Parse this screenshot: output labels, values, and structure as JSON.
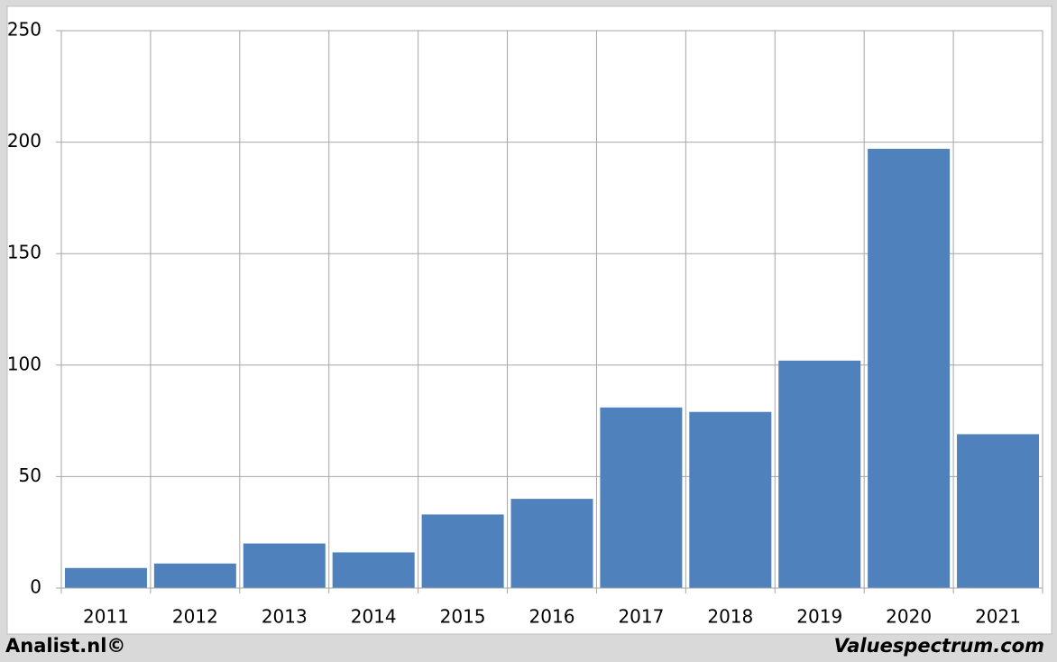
{
  "chart_data": {
    "type": "bar",
    "categories": [
      "2011",
      "2012",
      "2013",
      "2014",
      "2015",
      "2016",
      "2017",
      "2018",
      "2019",
      "2020",
      "2021"
    ],
    "values": [
      9,
      11,
      20,
      16,
      33,
      40,
      81,
      79,
      102,
      197,
      69
    ],
    "color": "#4f81bd",
    "ylim": [
      0,
      250
    ],
    "yticks": [
      0,
      50,
      100,
      150,
      200,
      250
    ],
    "grid": true,
    "footer_left": "Analist.nl©",
    "footer_right": "Valuespectrum.com"
  }
}
